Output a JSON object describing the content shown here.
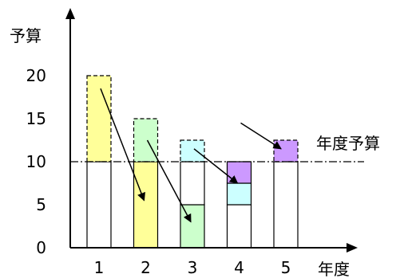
{
  "chart_data": {
    "type": "bar",
    "ylabel": "予算",
    "xlabel": "年度",
    "reference_line": {
      "label": "年度予算",
      "value": 10
    },
    "ylim": [
      0,
      25
    ],
    "yticks": [
      0,
      5,
      10,
      15,
      20
    ],
    "categories": [
      "1",
      "2",
      "3",
      "4",
      "5"
    ],
    "bars": [
      {
        "year": "1",
        "segments": [
          {
            "from": 0,
            "to": 10,
            "fill": "#ffffff",
            "dashed": false
          },
          {
            "from": 10,
            "to": 20,
            "fill": "#ffff99",
            "dashed": true
          }
        ]
      },
      {
        "year": "2",
        "segments": [
          {
            "from": 0,
            "to": 10,
            "fill": "#ffff99",
            "dashed": false
          },
          {
            "from": 10,
            "to": 15,
            "fill": "#ccffcc",
            "dashed": true
          }
        ]
      },
      {
        "year": "3",
        "segments": [
          {
            "from": 0,
            "to": 5,
            "fill": "#ccffcc",
            "dashed": false
          },
          {
            "from": 5,
            "to": 10,
            "fill": "#ffffff",
            "dashed": false
          },
          {
            "from": 10,
            "to": 12.5,
            "fill": "#ccffff",
            "dashed": true
          }
        ]
      },
      {
        "year": "4",
        "segments": [
          {
            "from": 0,
            "to": 5,
            "fill": "#ffffff",
            "dashed": false
          },
          {
            "from": 5,
            "to": 7.5,
            "fill": "#ccffff",
            "dashed": false
          },
          {
            "from": 7.5,
            "to": 10,
            "fill": "#cc99ff",
            "dashed": false
          }
        ]
      },
      {
        "year": "5",
        "segments": [
          {
            "from": 0,
            "to": 10,
            "fill": "#ffffff",
            "dashed": false
          },
          {
            "from": 10,
            "to": 12.5,
            "fill": "#cc99ff",
            "dashed": true
          }
        ]
      }
    ],
    "arrows": [
      {
        "from_year": "1",
        "from_value": 18.5,
        "to_year": "2",
        "to_value": 5.5
      },
      {
        "from_year": "2",
        "from_value": 12.5,
        "to_year": "3",
        "to_value": 3
      },
      {
        "from_year": "3",
        "from_value": 11.5,
        "to_year": "4",
        "to_value": 7.5
      },
      {
        "from_year": "4",
        "from_value": 14.5,
        "to_year": "5",
        "to_value": 11.5
      }
    ],
    "grid": false,
    "legend": "none"
  }
}
